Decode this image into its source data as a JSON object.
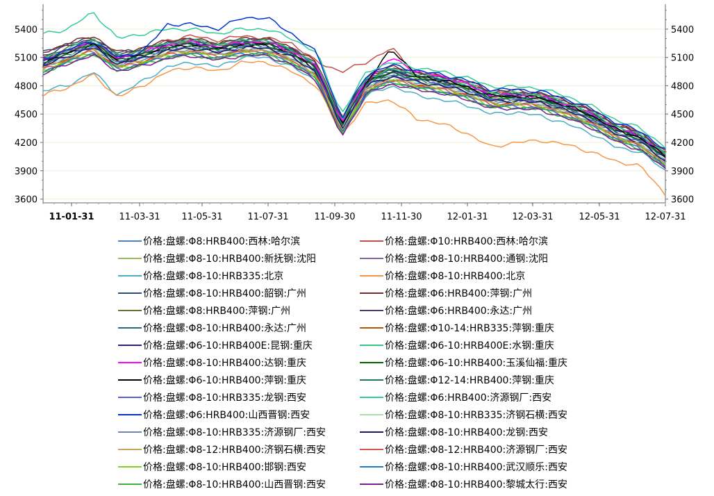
{
  "chart_data": {
    "type": "line",
    "title": "",
    "xlabel": "",
    "ylabel": "",
    "ylim": [
      3560,
      5620
    ],
    "yticks": [
      3600,
      3900,
      4200,
      4500,
      4800,
      5100,
      5400
    ],
    "grid": true,
    "legend_position": "bottom",
    "y_axes": "left and right (mirrored)",
    "x_ticks": [
      "11-01-31",
      "11-03-31",
      "11-05-31",
      "11-07-31",
      "11-09-30",
      "11-11-30",
      "12-01-31",
      "12-03-31",
      "12-05-31",
      "12-07-31"
    ],
    "x_end": "12-08-10",
    "series": [
      {
        "name": "价格:盘螺:Φ8:HRB400:西林:哈尔滨",
        "color": "#4f81bd",
        "values": [
          5050,
          5150,
          5250,
          5030,
          5120,
          5250,
          5280,
          5230,
          5280,
          5260,
          5200,
          5000,
          4350,
          4800,
          4920,
          4870,
          4850,
          4780,
          4650,
          4660,
          4640,
          4580,
          4470,
          4310,
          4250,
          4000
        ]
      },
      {
        "name": "价格:盘螺:Φ10:HRB400:西林:哈尔滨",
        "color": "#c0504d",
        "values": [
          5100,
          5180,
          5280,
          5080,
          5170,
          5280,
          5330,
          5280,
          5330,
          5300,
          5250,
          5050,
          4950,
          5050,
          5200,
          4930,
          4900,
          4840,
          4720,
          4720,
          4700,
          4640,
          4540,
          4380,
          4320,
          4060
        ]
      },
      {
        "name": "价格:盘螺:Φ8-10:HRB400:新抚钢:沈阳",
        "color": "#9bbb59",
        "values": [
          5100,
          5170,
          5260,
          5040,
          5130,
          5240,
          5290,
          5250,
          5290,
          5240,
          5190,
          4980,
          4450,
          4880,
          4980,
          4880,
          4850,
          4780,
          4660,
          4680,
          4640,
          4550,
          4440,
          4280,
          4220,
          4030
        ]
      },
      {
        "name": "价格:盘螺:Φ8-10:HRB400:通钢:沈阳",
        "color": "#8064a2",
        "values": [
          5060,
          5160,
          5260,
          5020,
          5100,
          5230,
          5270,
          5220,
          5260,
          5260,
          5200,
          5000,
          4420,
          4860,
          4960,
          4860,
          4830,
          4760,
          4640,
          4650,
          4620,
          4550,
          4450,
          4300,
          4230,
          4000
        ]
      },
      {
        "name": "价格:盘螺:Φ8-10:HRB335:北京",
        "color": "#4bacc6",
        "values": [
          4750,
          4800,
          4950,
          4700,
          4850,
          5000,
          5050,
          5000,
          5100,
          5100,
          5000,
          4850,
          4300,
          4700,
          4800,
          4700,
          4650,
          4600,
          4500,
          4520,
          4480,
          4400,
          4300,
          4150,
          4100,
          3900
        ]
      },
      {
        "name": "价格:盘螺:Φ8-10:HRB400:北京",
        "color": "#f79646",
        "values": [
          4700,
          4780,
          4920,
          4680,
          4800,
          4950,
          5000,
          4950,
          5050,
          5050,
          4950,
          4800,
          4280,
          4620,
          4650,
          4450,
          4400,
          4300,
          4150,
          4200,
          4220,
          4180,
          4100,
          4000,
          3950,
          3650
        ]
      },
      {
        "name": "价格:盘螺:Φ8-10:HRB400:韶钢:广州",
        "color": "#2c4d75",
        "values": [
          5150,
          5250,
          5300,
          5150,
          5180,
          5250,
          5250,
          5200,
          5250,
          5250,
          5180,
          5000,
          4400,
          4850,
          4950,
          4900,
          4850,
          4800,
          4700,
          4700,
          4680,
          4600,
          4500,
          4350,
          4250,
          4050
        ]
      },
      {
        "name": "价格:盘螺:Φ6:HRB400:萍钢:广州",
        "color": "#772c2a",
        "values": [
          5150,
          5250,
          5330,
          5150,
          5200,
          5280,
          5300,
          5250,
          5300,
          5300,
          5200,
          5050,
          4450,
          4900,
          5000,
          4950,
          4900,
          4850,
          4750,
          4750,
          4720,
          4650,
          4550,
          4400,
          4300,
          4100
        ]
      },
      {
        "name": "价格:盘螺:Φ8:HRB400:萍钢:广州",
        "color": "#5f7530",
        "values": [
          5100,
          5200,
          5300,
          5120,
          5180,
          5250,
          5280,
          5230,
          5280,
          5280,
          5180,
          5020,
          4420,
          4880,
          4980,
          4920,
          4880,
          4820,
          4720,
          4720,
          4700,
          4620,
          4520,
          4370,
          4280,
          4080
        ]
      },
      {
        "name": "价格:盘螺:Φ6:HRB400:永达:广州",
        "color": "#4d3b62",
        "values": [
          5120,
          5220,
          5300,
          5130,
          5190,
          5260,
          5290,
          5240,
          5290,
          5290,
          5190,
          5030,
          4430,
          4890,
          4990,
          4930,
          4890,
          4830,
          4730,
          4730,
          4710,
          4630,
          4530,
          4380,
          4290,
          4090
        ]
      },
      {
        "name": "价格:盘螺:Φ8-10:HRB400:永达:广州",
        "color": "#276a7c",
        "values": [
          5080,
          5180,
          5280,
          5100,
          5160,
          5240,
          5270,
          5220,
          5270,
          5270,
          5170,
          5010,
          4410,
          4870,
          4970,
          4910,
          4870,
          4810,
          4710,
          4710,
          4690,
          4610,
          4510,
          4360,
          4270,
          4070
        ]
      },
      {
        "name": "价格:盘螺:Φ10-14:HRB335:萍钢:重庆",
        "color": "#b65708",
        "values": [
          5000,
          5080,
          5180,
          5000,
          5060,
          5150,
          5170,
          5130,
          5180,
          5180,
          5080,
          4920,
          4320,
          4780,
          4870,
          4810,
          4770,
          4710,
          4610,
          4610,
          4590,
          4510,
          4410,
          4260,
          4170,
          3970
        ]
      },
      {
        "name": "价格:盘螺:Φ6-10:HRB400E:昆钢:重庆",
        "color": "#2d1e7b",
        "values": [
          5060,
          5160,
          5260,
          5080,
          5140,
          5220,
          5250,
          5200,
          5250,
          5250,
          5150,
          4990,
          4390,
          4850,
          4950,
          4890,
          4850,
          4790,
          4690,
          4690,
          4670,
          4590,
          4490,
          4340,
          4250,
          4050
        ]
      },
      {
        "name": "价格:盘螺:Φ6-10:HRB400E:水钢:重庆",
        "color": "#34c684",
        "values": [
          5090,
          5190,
          5290,
          5110,
          5170,
          5250,
          5280,
          5230,
          5280,
          5280,
          5180,
          5020,
          4420,
          4880,
          4980,
          4920,
          4880,
          4820,
          4720,
          4720,
          4700,
          4620,
          4520,
          4370,
          4280,
          4080
        ]
      },
      {
        "name": "价格:盘螺:Φ8-10:HRB400:达钢:重庆",
        "color": "#ff00ff",
        "values": [
          5070,
          5170,
          5270,
          5090,
          5150,
          5230,
          5260,
          5210,
          5260,
          5260,
          5160,
          5000,
          4400,
          4860,
          5100,
          4950,
          4900,
          4820,
          4700,
          4700,
          4680,
          4600,
          4500,
          4350,
          4260,
          4060
        ]
      },
      {
        "name": "价格:盘螺:Φ6-10:HRB400:玉溪仙福:重庆",
        "color": "#006400",
        "values": [
          5050,
          5150,
          5250,
          5070,
          5130,
          5210,
          5240,
          5190,
          5240,
          5240,
          5140,
          4980,
          4380,
          4840,
          4940,
          4880,
          4840,
          4780,
          4680,
          4680,
          4660,
          4580,
          4480,
          4330,
          4240,
          4040
        ]
      },
      {
        "name": "价格:盘螺:Φ6-10:HRB400:萍钢:重庆",
        "color": "#000000",
        "values": [
          5040,
          5140,
          5240,
          5060,
          5120,
          5200,
          5230,
          5180,
          5230,
          5230,
          5130,
          4970,
          4370,
          4830,
          5200,
          4900,
          4860,
          4790,
          4690,
          4690,
          4670,
          4590,
          4490,
          4340,
          4250,
          4050
        ]
      },
      {
        "name": "价格:盘螺:Φ12-14:HRB400:萍钢:重庆",
        "color": "#1f7a5c",
        "values": [
          5030,
          5130,
          5230,
          5050,
          5110,
          5190,
          5220,
          5170,
          5220,
          5220,
          5120,
          4960,
          4360,
          4820,
          4920,
          4860,
          4820,
          4760,
          4660,
          4660,
          4640,
          4560,
          4460,
          4310,
          4220,
          4020
        ]
      },
      {
        "name": "价格:盘螺:Φ8-10:HRB335:龙钢:西安",
        "color": "#5b5bd6",
        "values": [
          5020,
          5120,
          5220,
          5040,
          5100,
          5180,
          5210,
          5160,
          5210,
          5210,
          5110,
          4950,
          4350,
          4810,
          4910,
          4850,
          4810,
          4750,
          4650,
          4650,
          4630,
          4550,
          4450,
          4300,
          4210,
          4010
        ]
      },
      {
        "name": "价格:盘螺:Φ6:HRB400:济源钢厂:西安",
        "color": "#33cc99",
        "values": [
          5350,
          5400,
          5580,
          5300,
          5350,
          5400,
          5400,
          5350,
          5400,
          5400,
          5300,
          5150,
          4500,
          4950,
          5050,
          4990,
          4950,
          4890,
          4790,
          4790,
          4770,
          4690,
          4590,
          4440,
          4350,
          4150
        ]
      },
      {
        "name": "价格:盘螺:Φ6:HRB400:山西晋钢:西安",
        "color": "#0033cc",
        "values": [
          5080,
          5180,
          5280,
          5100,
          5160,
          5450,
          5450,
          5400,
          5520,
          5520,
          5350,
          5150,
          4450,
          4920,
          5020,
          4960,
          4920,
          4860,
          4760,
          4760,
          4740,
          4660,
          4560,
          4410,
          4320,
          4120
        ]
      },
      {
        "name": "价格:盘螺:Φ8-10:HRB335:济钢石横:西安",
        "color": "#aaddaa",
        "values": [
          5000,
          5100,
          5200,
          5020,
          5080,
          5160,
          5190,
          5140,
          5190,
          5190,
          5090,
          4930,
          4330,
          4790,
          4890,
          4830,
          4790,
          4730,
          4630,
          4630,
          4610,
          4530,
          4430,
          4280,
          4190,
          3990
        ]
      },
      {
        "name": "价格:盘螺:Φ8-10:HRB335:济源钢厂:西安",
        "color": "#6f86b0",
        "values": [
          4990,
          5090,
          5190,
          5010,
          5070,
          5150,
          5180,
          5130,
          5180,
          5180,
          5080,
          4920,
          4320,
          4780,
          4880,
          4820,
          4780,
          4720,
          4620,
          4620,
          4600,
          4520,
          4420,
          4270,
          4180,
          3980
        ]
      },
      {
        "name": "价格:盘螺:Φ8-10:HRB400:龙钢:西安",
        "color": "#1a1a5e",
        "values": [
          5010,
          5110,
          5210,
          5030,
          5090,
          5170,
          5200,
          5150,
          5200,
          5200,
          5100,
          4940,
          4340,
          4800,
          4900,
          4840,
          4800,
          4740,
          4640,
          4640,
          4620,
          4540,
          4440,
          4290,
          4200,
          4000
        ]
      },
      {
        "name": "价格:盘螺:Φ8-12:HRB400:济钢石横:西安",
        "color": "#c9a55a",
        "values": [
          4980,
          5080,
          5180,
          5000,
          5060,
          5140,
          5170,
          5120,
          5170,
          5170,
          5070,
          4910,
          4310,
          4770,
          4870,
          4810,
          4770,
          4710,
          4610,
          4610,
          4590,
          4510,
          4410,
          4260,
          4170,
          3970
        ]
      },
      {
        "name": "价格:盘螺:Φ8-12:HRB400:济源钢厂:西安",
        "color": "#d9534f",
        "values": [
          4970,
          5070,
          5170,
          4990,
          5050,
          5130,
          5160,
          5110,
          5160,
          5160,
          5060,
          4900,
          4300,
          4760,
          4860,
          4800,
          4760,
          4700,
          4600,
          4600,
          4580,
          4500,
          4400,
          4250,
          4160,
          3960
        ]
      },
      {
        "name": "价格:盘螺:Φ8-10:HRB400:邯钢:西安",
        "color": "#7ed321",
        "values": [
          4960,
          5060,
          5160,
          4980,
          5040,
          5120,
          5150,
          5100,
          5150,
          5150,
          5050,
          4890,
          4290,
          4750,
          4850,
          4790,
          4750,
          4690,
          4590,
          4590,
          4570,
          4490,
          4390,
          4240,
          4150,
          3950
        ]
      },
      {
        "name": "价格:盘螺:Φ8-10:HRB400:武汉顺乐:西安",
        "color": "#1f78d1",
        "values": [
          4950,
          5050,
          5150,
          4970,
          5030,
          5110,
          5140,
          5090,
          5140,
          5140,
          5040,
          4880,
          4280,
          4740,
          4840,
          4780,
          4740,
          4680,
          4580,
          4580,
          4560,
          4480,
          4380,
          4230,
          4140,
          3940
        ]
      },
      {
        "name": "价格:盘螺:Φ8-10:HRB400:山西晋钢:西安",
        "color": "#3cb043",
        "values": [
          4940,
          5040,
          5140,
          4960,
          5020,
          5100,
          5130,
          5080,
          5130,
          5130,
          5030,
          4870,
          4270,
          4730,
          4830,
          4770,
          4730,
          4670,
          4570,
          4570,
          4550,
          4470,
          4370,
          4220,
          4130,
          3930
        ]
      },
      {
        "name": "价格:盘螺:Φ8-10:HRB400:黎城太行:西安",
        "color": "#7a1f8f",
        "values": [
          4930,
          5030,
          5130,
          4950,
          5010,
          5090,
          5120,
          5070,
          5120,
          5120,
          5020,
          4860,
          4260,
          4720,
          4820,
          4760,
          4720,
          4660,
          4560,
          4560,
          4540,
          4460,
          4360,
          4210,
          4120,
          3920
        ]
      }
    ]
  }
}
